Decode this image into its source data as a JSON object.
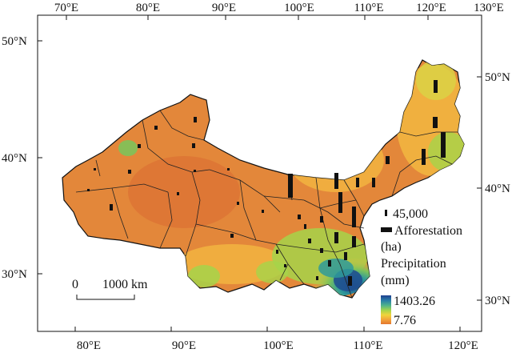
{
  "top_axis": {
    "labels": [
      "70°E",
      "80°E",
      "90°E",
      "100°E",
      "110°E",
      "120°E",
      "130°E"
    ]
  },
  "bottom_axis": {
    "labels": [
      "80°E",
      "90°E",
      "100°E",
      "110°E",
      "120°E"
    ]
  },
  "left_axis": {
    "labels": [
      "50°N",
      "40°N",
      "30°N"
    ]
  },
  "right_axis": {
    "labels": [
      "50°N",
      "40°N",
      "30°N"
    ]
  },
  "scale_bar": {
    "zero": "0",
    "distance": "1000 km"
  },
  "afforestation_legend": {
    "value": "45,000",
    "title_line1": "Afforestation",
    "title_line2": "(ha)"
  },
  "precipitation_legend": {
    "title_line1": "Precipitation",
    "title_line2": "(mm)",
    "max": "1403.26",
    "min": "7.76",
    "colors": [
      "#1f3f8f",
      "#2a7fa8",
      "#4fb38a",
      "#a6d44a",
      "#f0d43a",
      "#f2a43a",
      "#e4762e"
    ]
  },
  "map_colors": {
    "dry": "#e3873a",
    "mid": "#f2b741",
    "semiwet": "#d9d446",
    "green": "#7dc35a",
    "teal": "#2f9a9a",
    "wet": "#1f4f8f"
  }
}
